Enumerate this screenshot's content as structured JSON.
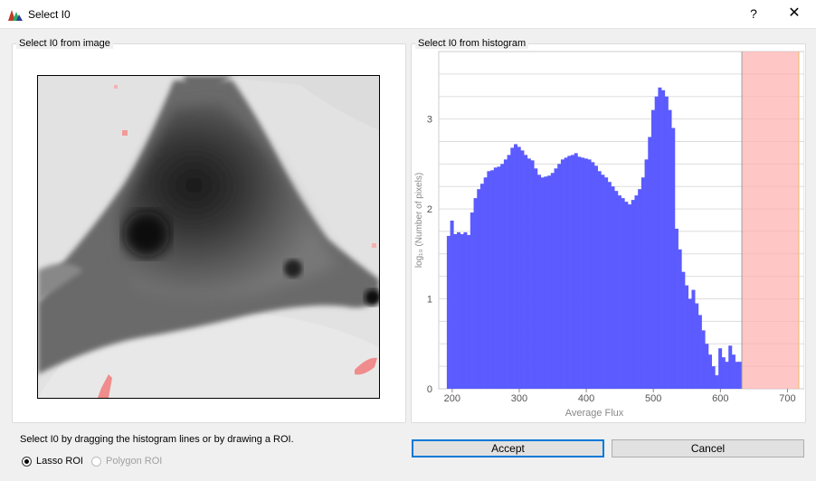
{
  "window": {
    "title": "Select I0",
    "help_label": "?",
    "close_label": "✕"
  },
  "left_panel": {
    "label": "Select I0 from image"
  },
  "right_panel": {
    "label": "Select I0 from histogram"
  },
  "histogram": {
    "xlabel": "Average Flux",
    "ylabel": "log₁₀ (Number of pixels)",
    "x_ticks": [
      200,
      300,
      400,
      500,
      600,
      700
    ],
    "y_ticks": [
      0,
      1,
      2,
      3
    ],
    "xlim": [
      180,
      725
    ],
    "ylim": [
      0,
      3.75
    ],
    "bar_color": "#5b5bff",
    "selection_color": "#ffb3b3",
    "selection_range": [
      632,
      717
    ]
  },
  "chart_data": {
    "type": "bar",
    "title": "",
    "xlabel": "Average Flux",
    "ylabel": "log₁₀ (Number of pixels)",
    "bin_start": 192,
    "bin_width": 5,
    "values": [
      1.7,
      1.87,
      1.72,
      1.74,
      1.72,
      1.74,
      1.71,
      1.96,
      2.12,
      2.22,
      2.28,
      2.35,
      2.42,
      2.43,
      2.46,
      2.47,
      2.5,
      2.55,
      2.6,
      2.68,
      2.72,
      2.69,
      2.65,
      2.6,
      2.56,
      2.54,
      2.45,
      2.38,
      2.35,
      2.36,
      2.37,
      2.4,
      2.45,
      2.5,
      2.55,
      2.57,
      2.59,
      2.6,
      2.62,
      2.58,
      2.57,
      2.56,
      2.55,
      2.52,
      2.48,
      2.42,
      2.38,
      2.35,
      2.3,
      2.25,
      2.2,
      2.15,
      2.12,
      2.08,
      2.05,
      2.1,
      2.15,
      2.22,
      2.35,
      2.55,
      2.8,
      3.1,
      3.25,
      3.35,
      3.32,
      3.25,
      3.1,
      2.9,
      1.78,
      1.55,
      1.3,
      1.15,
      1.0,
      1.1,
      0.95,
      0.82,
      0.65,
      0.5,
      0.38,
      0.25,
      0.15,
      0.45,
      0.35,
      0.3,
      0.48,
      0.38,
      0.3,
      0.3
    ],
    "selection_range": [
      632,
      717
    ],
    "xlim": [
      180,
      725
    ],
    "ylim": [
      0,
      3.75
    ]
  },
  "instruction": "Select I0 by dragging the histogram lines or by drawing a ROI.",
  "roi_options": [
    {
      "label": "Lasso ROI",
      "checked": true,
      "enabled": true
    },
    {
      "label": "Polygon ROI",
      "checked": false,
      "enabled": false
    }
  ],
  "buttons": {
    "accept": "Accept",
    "cancel": "Cancel"
  }
}
